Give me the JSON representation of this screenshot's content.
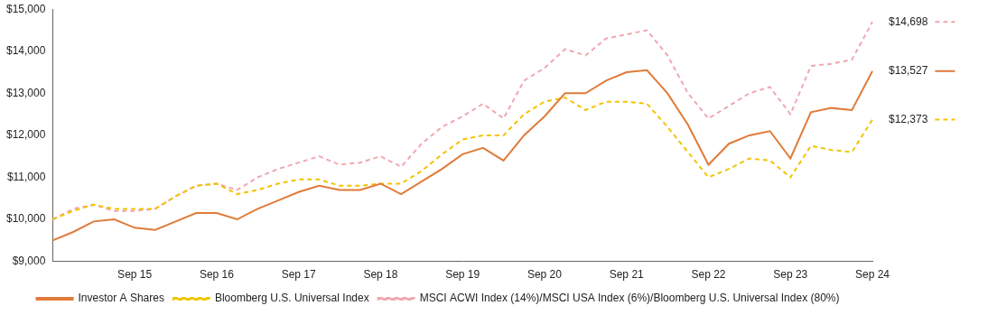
{
  "chart_data": {
    "type": "line",
    "categories": [
      null,
      null,
      null,
      null,
      "Sep 15",
      null,
      null,
      null,
      "Sep 16",
      null,
      null,
      null,
      "Sep 17",
      null,
      null,
      null,
      "Sep 18",
      null,
      null,
      null,
      "Sep 19",
      null,
      null,
      null,
      "Sep 20",
      null,
      null,
      null,
      "Sep 21",
      null,
      null,
      null,
      "Sep 22",
      null,
      null,
      null,
      "Sep 23",
      null,
      null,
      null,
      "Sep 24"
    ],
    "series": [
      {
        "name": "Investor A Shares",
        "color": "#e07b39",
        "line_style": "solid",
        "values": [
          9500,
          9700,
          9950,
          10000,
          9800,
          9750,
          9950,
          10150,
          10150,
          10000,
          10250,
          10450,
          10650,
          10800,
          10700,
          10700,
          10850,
          10600,
          10900,
          11200,
          11550,
          11700,
          11400,
          12000,
          12450,
          13000,
          13000,
          13300,
          13500,
          13550,
          13000,
          12250,
          11300,
          11800,
          12000,
          12100,
          11450,
          12550,
          12650,
          12600,
          13527
        ],
        "value_labels": [
          null,
          null,
          null,
          null,
          null,
          null,
          null,
          null,
          null,
          null,
          null,
          null,
          null,
          null,
          null,
          null,
          null,
          null,
          null,
          null,
          null,
          null,
          null,
          null,
          null,
          null,
          null,
          null,
          null,
          null,
          null,
          null,
          null,
          null,
          null,
          null,
          null,
          null,
          null,
          null,
          "$13,527"
        ]
      },
      {
        "name": "Bloomberg U.S. Universal Index",
        "color": "#f2c400",
        "line_style": "dashed",
        "values": [
          10000,
          10200,
          10350,
          10250,
          10250,
          10250,
          10550,
          10800,
          10850,
          10600,
          10700,
          10850,
          10950,
          10950,
          10800,
          10800,
          10850,
          10850,
          11150,
          11550,
          11900,
          12000,
          12000,
          12500,
          12800,
          12900,
          12600,
          12800,
          12800,
          12750,
          12200,
          11600,
          11000,
          11200,
          11450,
          11400,
          11000,
          11750,
          11650,
          11600,
          12373
        ],
        "value_labels": [
          null,
          null,
          null,
          null,
          null,
          null,
          null,
          null,
          null,
          null,
          null,
          null,
          null,
          null,
          null,
          null,
          null,
          null,
          null,
          null,
          null,
          null,
          null,
          null,
          null,
          null,
          null,
          null,
          null,
          null,
          null,
          null,
          null,
          null,
          null,
          null,
          null,
          null,
          null,
          null,
          "$12,373"
        ]
      },
      {
        "name": "MSCI ACWI Index (14%)/MSCI USA Index (6%)/Bloomberg U.S. Universal Index (80%)",
        "color": "#f0a8b0",
        "line_style": "dashed",
        "values": [
          10000,
          10250,
          10350,
          10200,
          10200,
          10250,
          10550,
          10800,
          10850,
          10700,
          11000,
          11200,
          11350,
          11500,
          11300,
          11350,
          11500,
          11250,
          11800,
          12200,
          12450,
          12750,
          12400,
          13300,
          13600,
          14050,
          13900,
          14300,
          14400,
          14500,
          13900,
          13000,
          12400,
          12700,
          13000,
          13150,
          12500,
          13650,
          13700,
          13800,
          14698
        ],
        "value_labels": [
          null,
          null,
          null,
          null,
          null,
          null,
          null,
          null,
          null,
          null,
          null,
          null,
          null,
          null,
          null,
          null,
          null,
          null,
          null,
          null,
          null,
          null,
          null,
          null,
          null,
          null,
          null,
          null,
          null,
          null,
          null,
          null,
          null,
          null,
          null,
          null,
          null,
          null,
          null,
          null,
          "$14,698"
        ]
      }
    ],
    "ylim": [
      9000,
      15000
    ],
    "yticks": [
      {
        "value": 9000,
        "label": "$9,000"
      },
      {
        "value": 10000,
        "label": "$10,000"
      },
      {
        "value": 11000,
        "label": "$11,000"
      },
      {
        "value": 12000,
        "label": "$12,000"
      },
      {
        "value": 13000,
        "label": "$13,000"
      },
      {
        "value": 14000,
        "label": "$14,000"
      },
      {
        "value": 15000,
        "label": "$15,000"
      }
    ],
    "grid": false,
    "legend": "bottom"
  }
}
